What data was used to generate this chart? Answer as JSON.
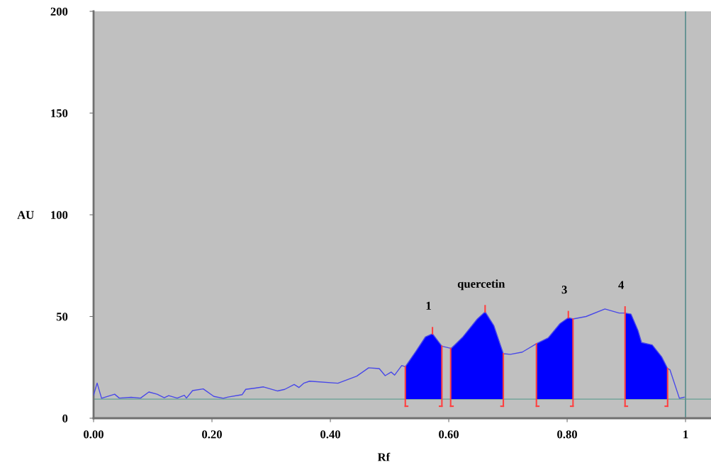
{
  "chart_data": {
    "type": "line",
    "xlabel": "Rf",
    "ylabel": "AU",
    "xlim": [
      0,
      1.043
    ],
    "ylim": [
      0,
      200
    ],
    "xticks": [
      {
        "value": 0,
        "label": "0.00"
      },
      {
        "value": 0.2,
        "label": "0.20"
      },
      {
        "value": 0.4,
        "label": "0.40"
      },
      {
        "value": 0.6,
        "label": "0.60"
      },
      {
        "value": 0.8,
        "label": "0.80"
      },
      1
    ],
    "yticks": [
      0,
      50,
      100,
      150,
      200
    ],
    "grid": false,
    "legend": false,
    "series": [
      {
        "color": "#4848e8",
        "x": [
          0.0,
          0.006,
          0.0135,
          0.0356,
          0.0435,
          0.0635,
          0.0794,
          0.0934,
          0.1074,
          0.1194,
          0.1269,
          0.1413,
          0.1533,
          0.1569,
          0.1673,
          0.1853,
          0.2032,
          0.2192,
          0.2272,
          0.2511,
          0.2571,
          0.2731,
          0.2871,
          0.311,
          0.323,
          0.3389,
          0.3469,
          0.3549,
          0.3649,
          0.4128,
          0.4447,
          0.4647,
          0.4826,
          0.4926,
          0.5027,
          0.5086,
          0.5206,
          0.5266,
          0.5446,
          0.5605,
          0.5725,
          0.5884,
          0.6044,
          0.6243,
          0.6483,
          0.6614,
          0.6763,
          0.6922,
          0.7042,
          0.7242,
          0.7481,
          0.768,
          0.788,
          0.802,
          0.8099,
          0.832,
          0.8638,
          0.8878,
          0.8978,
          0.9078,
          0.9198,
          0.9257,
          0.9437,
          0.9596,
          0.9697,
          0.9737,
          0.9896,
          0.9976
        ],
        "values": [
          11.3,
          17.3,
          9.8,
          11.8,
          9.9,
          10.3,
          9.9,
          12.9,
          11.8,
          10.1,
          11.1,
          9.9,
          11.3,
          9.9,
          13.6,
          14.4,
          10.7,
          9.8,
          10.4,
          11.6,
          14.2,
          14.8,
          15.4,
          13.4,
          14.2,
          16.6,
          15.1,
          17.2,
          18.2,
          17.2,
          20.7,
          24.8,
          24.4,
          20.9,
          22.7,
          21.2,
          25.9,
          25.3,
          32.9,
          39.9,
          41.5,
          35.4,
          34.3,
          40.1,
          48.8,
          52.3,
          45.4,
          31.7,
          31.4,
          32.5,
          36.6,
          39.5,
          46.5,
          49.4,
          48.8,
          50.0,
          53.7,
          51.7,
          51.7,
          51.2,
          43.0,
          37.2,
          36.0,
          30.2,
          24.4,
          23.8,
          9.8,
          10.3
        ]
      },
      {
        "type": "area",
        "color": "#0000ff",
        "x": [
          0.5266,
          0.5446,
          0.5605,
          0.5725,
          0.5884
        ],
        "values": [
          25.3,
          32.9,
          39.9,
          41.5,
          35.4
        ]
      },
      {
        "type": "area",
        "color": "#0000ff",
        "x": [
          0.6032,
          0.6243,
          0.6483,
          0.6614,
          0.6763,
          0.6922
        ],
        "values": [
          34.3,
          40.1,
          48.8,
          52.3,
          45.4,
          31.7
        ]
      },
      {
        "type": "area",
        "color": "#0000ff",
        "x": [
          0.7481,
          0.768,
          0.788,
          0.802,
          0.8099
        ],
        "values": [
          36.6,
          39.5,
          46.5,
          49.4,
          48.8
        ]
      },
      {
        "type": "area",
        "color": "#0000ff",
        "x": [
          0.8978,
          0.9078,
          0.9198,
          0.9257,
          0.9437,
          0.9596,
          0.9697
        ],
        "values": [
          51.7,
          51.2,
          43.0,
          37.2,
          36.0,
          30.2,
          24.4
        ]
      }
    ],
    "ref_lines": [
      {
        "axis": "y",
        "value": 9.4,
        "color": "#7fa8a0"
      },
      {
        "axis": "x",
        "value": 1,
        "color": "#5f9090"
      }
    ],
    "annotations": [
      "1",
      "quercetin",
      "3",
      "4"
    ]
  }
}
